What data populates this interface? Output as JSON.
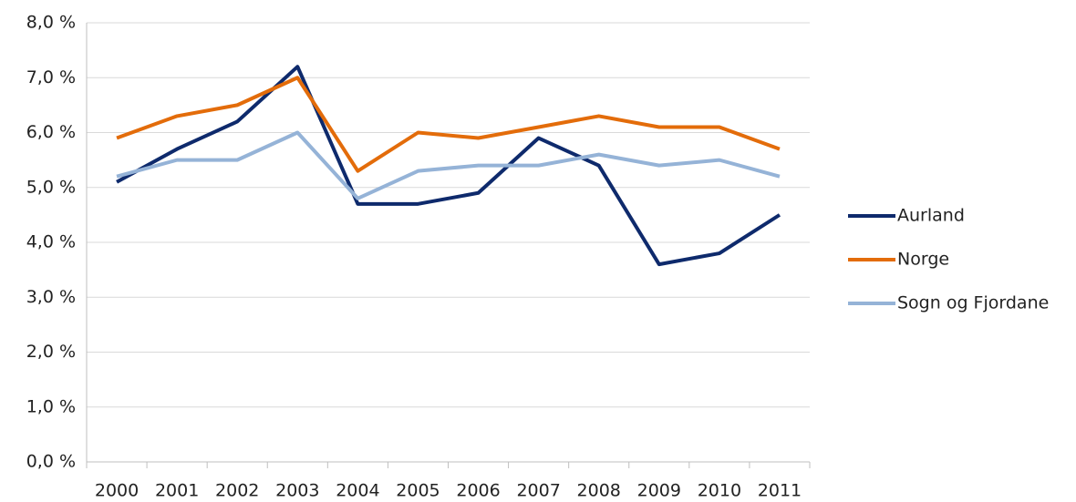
{
  "chart_data": {
    "type": "line",
    "categories": [
      "2000",
      "2001",
      "2002",
      "2003",
      "2004",
      "2005",
      "2006",
      "2007",
      "2008",
      "2009",
      "2010",
      "2011"
    ],
    "series": [
      {
        "name": "Aurland",
        "color": "#0e2a6c",
        "values": [
          5.1,
          5.7,
          6.2,
          7.2,
          4.7,
          4.7,
          4.9,
          5.9,
          5.4,
          3.6,
          3.8,
          4.5
        ]
      },
      {
        "name": "Norge",
        "color": "#e36c0a",
        "values": [
          5.9,
          6.3,
          6.5,
          7.0,
          5.3,
          6.0,
          5.9,
          6.1,
          6.3,
          6.1,
          6.1,
          5.7
        ]
      },
      {
        "name": "Sogn og Fjordane",
        "color": "#95b3d7",
        "values": [
          5.2,
          5.5,
          5.5,
          6.0,
          4.8,
          5.3,
          5.4,
          5.4,
          5.6,
          5.4,
          5.5,
          5.2
        ]
      }
    ],
    "ylim": [
      0,
      8
    ],
    "yticks": [
      {
        "value": 0,
        "label": "0,0 %"
      },
      {
        "value": 1,
        "label": "1,0 %"
      },
      {
        "value": 2,
        "label": "2,0 %"
      },
      {
        "value": 3,
        "label": "3,0 %"
      },
      {
        "value": 4,
        "label": "4,0 %"
      },
      {
        "value": 5,
        "label": "5,0 %"
      },
      {
        "value": 6,
        "label": "6,0 %"
      },
      {
        "value": 7,
        "label": "7,0 %"
      },
      {
        "value": 8,
        "label": "8,0 %"
      }
    ],
    "grid": true,
    "legend": "right"
  }
}
